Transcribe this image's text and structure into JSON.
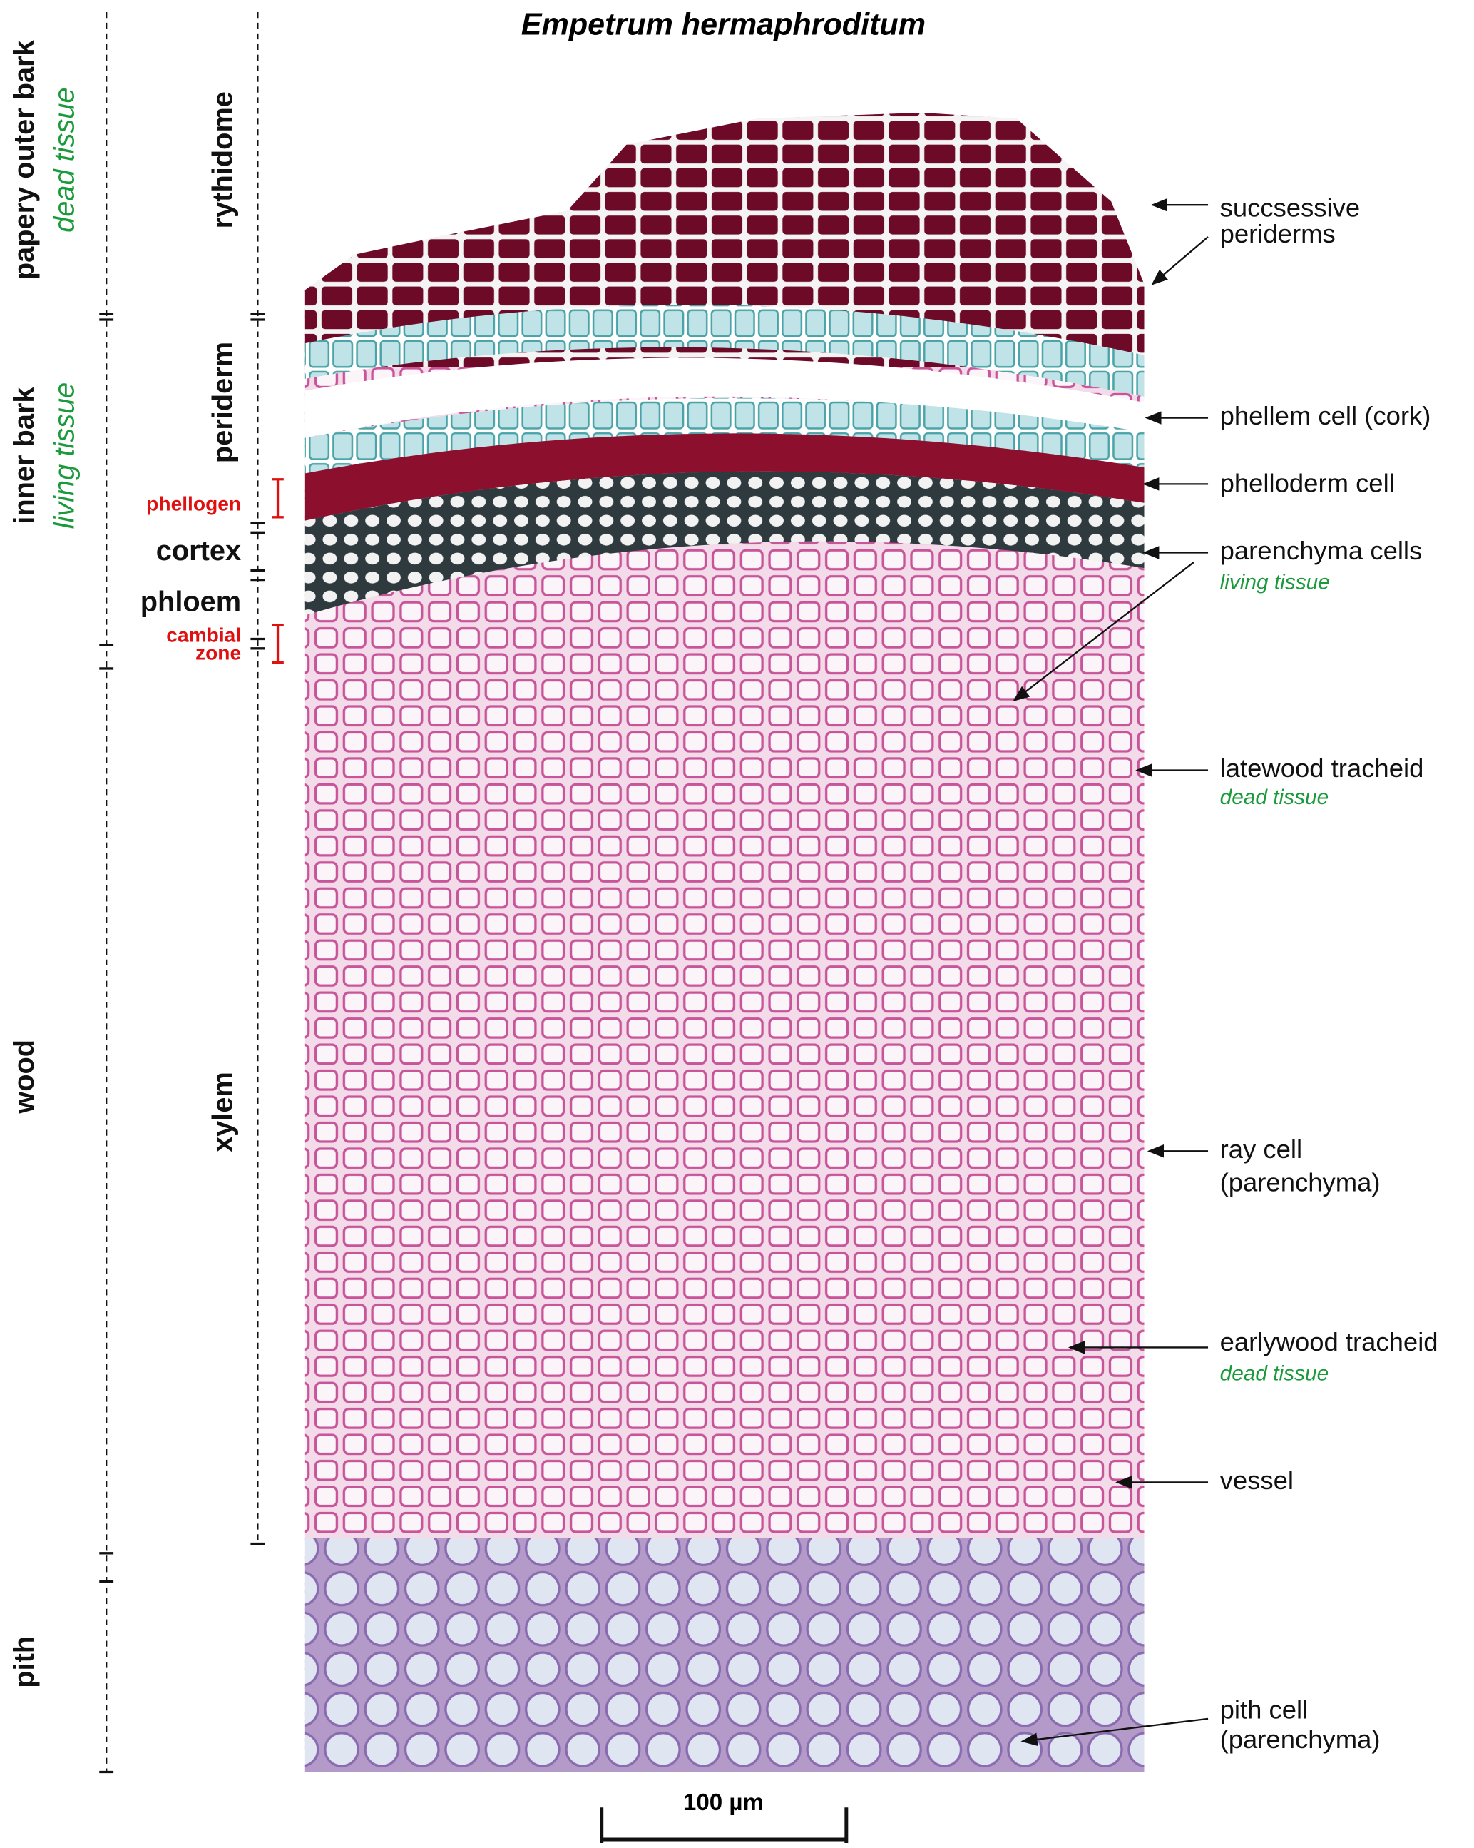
{
  "title": "Empetrum hermaphroditum",
  "regions": [
    {
      "label": "papery outer bark",
      "note": "dead tissue"
    },
    {
      "label": "inner bark",
      "note": "living tissue"
    },
    {
      "label": "wood"
    },
    {
      "label": "pith"
    }
  ],
  "layers": [
    {
      "label": "rythidome"
    },
    {
      "label": "periderm"
    },
    {
      "label": "phellogen"
    },
    {
      "label": "cortex"
    },
    {
      "label": "phloem"
    },
    {
      "lines": [
        "cambial",
        "zone"
      ]
    },
    {
      "label": "xylem"
    }
  ],
  "annotations": [
    {
      "lines": [
        "succsessive",
        "periderms"
      ]
    },
    {
      "lines": [
        "phellem cell (cork)"
      ]
    },
    {
      "lines": [
        "phelloderm cell"
      ]
    },
    {
      "lines": [
        "parenchyma cells"
      ],
      "note": "living tissue"
    },
    {
      "lines": [
        "latewood tracheid"
      ],
      "note": "dead tissue"
    },
    {
      "lines": [
        "ray cell",
        "(parenchyma)"
      ]
    },
    {
      "lines": [
        "earlywood tracheid"
      ],
      "note": "dead tissue"
    },
    {
      "lines": [
        "vessel"
      ]
    },
    {
      "lines": [
        "pith cell",
        "(parenchyma)"
      ]
    }
  ],
  "scale_bar": "100 µm"
}
